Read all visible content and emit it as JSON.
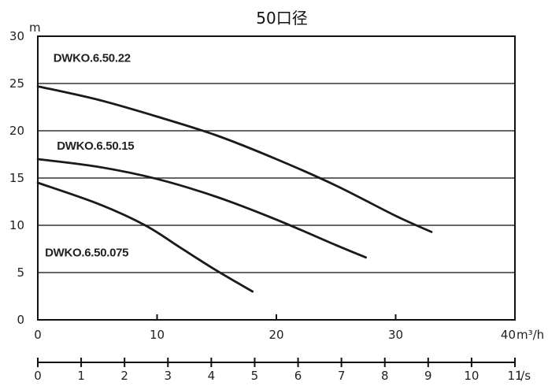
{
  "chart_data": {
    "type": "line",
    "title": "50口径",
    "ylabel": "m",
    "xlabel": "m³/h",
    "x2label": "l/s",
    "ylim": [
      0,
      30
    ],
    "xlim": [
      0,
      40
    ],
    "x2lim": [
      0,
      11
    ],
    "yticks": [
      0,
      5,
      10,
      15,
      20,
      25,
      30
    ],
    "xticks": [
      0,
      10,
      20,
      30,
      40
    ],
    "x2ticks": [
      0,
      1,
      2,
      3,
      4,
      5,
      6,
      7,
      8,
      9,
      10,
      11
    ],
    "grid": true,
    "series": [
      {
        "name": "DWKO.6.50.22",
        "label_at": [
          1.3,
          27.3
        ],
        "x": [
          0,
          5,
          10,
          15,
          20,
          25,
          30,
          33
        ],
        "y": [
          24.7,
          23.3,
          21.5,
          19.5,
          17.0,
          14.2,
          11.0,
          9.3
        ]
      },
      {
        "name": "DWKO.6.50.15",
        "label_at": [
          1.6,
          18.0
        ],
        "x": [
          0,
          5,
          10,
          15,
          20,
          25,
          27.5
        ],
        "y": [
          17.0,
          16.2,
          14.9,
          13.0,
          10.6,
          7.9,
          6.6
        ]
      },
      {
        "name": "DWKO.6.50.075",
        "label_at": [
          0.6,
          6.7
        ],
        "x": [
          0,
          5,
          9,
          12,
          15,
          18
        ],
        "y": [
          14.5,
          12.3,
          10.0,
          7.6,
          5.2,
          3.0
        ]
      }
    ]
  }
}
